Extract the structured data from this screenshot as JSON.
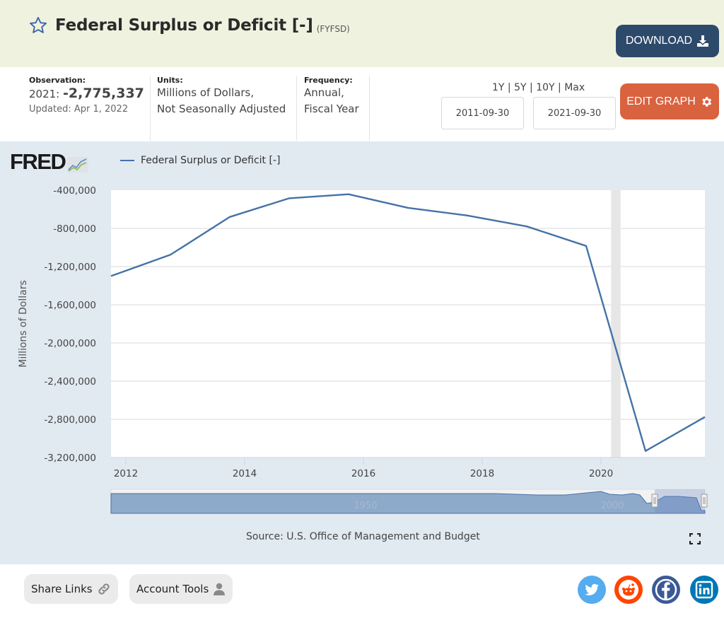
{
  "header": {
    "title": "Federal Surplus or Deficit [-]",
    "series_id": "(FYFSD)",
    "download_label": "DOWNLOAD",
    "star_icon": "star-outline-icon",
    "download_icon": "download-icon"
  },
  "meta": {
    "observation_label": "Observation:",
    "observation_date": "2021:",
    "observation_value": "-2,775,337",
    "updated": "Updated: Apr 1, 2022",
    "units_label": "Units:",
    "units_line1": "Millions of Dollars,",
    "units_line2": "Not Seasonally Adjusted",
    "frequency_label": "Frequency:",
    "frequency_line1": "Annual,",
    "frequency_line2": "Fiscal Year"
  },
  "controls": {
    "ranges": [
      "1Y",
      "5Y",
      "10Y",
      "Max"
    ],
    "separator": "|",
    "start_date": "2011-09-30",
    "end_date": "2021-09-30",
    "edit_label": "EDIT GRAPH",
    "edit_icon": "gear-icon"
  },
  "chart": {
    "logo_text": "FRED",
    "source": "Source: U.S. Office of Management and Budget",
    "fullscreen_icon": "fullscreen-icon",
    "navigator_labels": [
      "1950",
      "2000"
    ]
  },
  "footer": {
    "share_label": "Share Links",
    "account_label": "Account Tools",
    "share_icon": "link-icon",
    "account_icon": "user-icon",
    "social": [
      "twitter-icon",
      "reddit-icon",
      "facebook-icon",
      "linkedin-icon"
    ],
    "colors": {
      "twitter": "#55acee",
      "reddit": "#ff4500",
      "facebook": "#3b5998",
      "linkedin": "#0077b5"
    }
  },
  "colors": {
    "line": "#4572a7",
    "header_bg": "#f0f2e0",
    "download_bg": "#2e4a6b",
    "edit_bg": "#d9623f",
    "chart_bg": "#e1e9f1",
    "recession": "#e6e6e6"
  },
  "chart_data": {
    "type": "line",
    "title": "",
    "legend": "Federal Surplus or Deficit [-]",
    "xlabel": "",
    "ylabel": "Millions of Dollars",
    "x": [
      2011.75,
      2012.75,
      2013.75,
      2014.75,
      2015.75,
      2016.75,
      2017.75,
      2018.75,
      2019.75,
      2020.75,
      2021.75
    ],
    "series": [
      {
        "name": "Federal Surplus or Deficit [-]",
        "values": [
          -1299599,
          -1076573,
          -679775,
          -484602,
          -441960,
          -584651,
          -665446,
          -779137,
          -983590,
          -3131917,
          -2775337
        ]
      }
    ],
    "xlim": [
      2011.75,
      2021.75
    ],
    "ylim": [
      -3200000,
      -400000
    ],
    "xticks": [
      2012,
      2014,
      2016,
      2018,
      2020
    ],
    "xtick_labels": [
      "2012",
      "2014",
      "2016",
      "2018",
      "2020"
    ],
    "yticks": [
      -400000,
      -800000,
      -1200000,
      -1600000,
      -2000000,
      -2400000,
      -2800000,
      -3200000
    ],
    "ytick_labels": [
      "-400,000",
      "-800,000",
      "-1,200,000",
      "-1,600,000",
      "-2,000,000",
      "-2,400,000",
      "-2,800,000",
      "-3,200,000"
    ],
    "recessions": [
      [
        2020.17,
        2020.33
      ]
    ],
    "grid": true,
    "legend_position": "top-left"
  }
}
